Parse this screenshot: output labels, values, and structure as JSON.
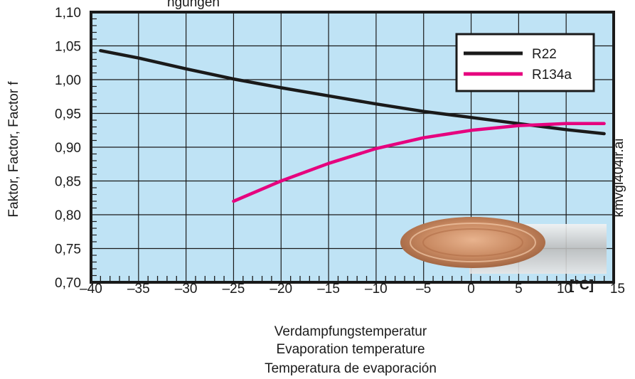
{
  "chart_data": {
    "type": "line",
    "top_caption": "ngungen",
    "ylabel": "Faktor, Factor, Factor f",
    "xlabel_lines": [
      "Verdampfungstemperatur",
      "Evaporation temperature",
      "Temperatura de evaporación"
    ],
    "x_unit": "[°C]",
    "side_label": "kmvgl404ir.ai",
    "xlim": [
      -40,
      15
    ],
    "ylim": [
      0.7,
      1.1
    ],
    "x_ticks": [
      -40,
      -35,
      -30,
      -25,
      -20,
      -15,
      -10,
      -5,
      0,
      5,
      10,
      15
    ],
    "x_tick_labels": [
      "–40",
      "–35",
      "–30",
      "–25",
      "–20",
      "–15",
      "–10",
      "–5",
      "0",
      "5",
      "10",
      "15"
    ],
    "y_ticks": [
      0.7,
      0.75,
      0.8,
      0.85,
      0.9,
      0.95,
      1.0,
      1.05,
      1.1
    ],
    "y_tick_labels": [
      "0,70",
      "0,75",
      "0,80",
      "0,85",
      "0,90",
      "0,95",
      "1,00",
      "1,05",
      "1,10"
    ],
    "grid": true,
    "legend_position": "top-right",
    "background_color": "#bfe3f5",
    "series": [
      {
        "name": "R22",
        "color": "#1a1a1a",
        "x": [
          -39,
          -35,
          -30,
          -25,
          -20,
          -15,
          -10,
          -5,
          0,
          5,
          10,
          14
        ],
        "y": [
          1.043,
          1.032,
          1.016,
          1.001,
          0.988,
          0.976,
          0.964,
          0.953,
          0.944,
          0.935,
          0.926,
          0.92
        ]
      },
      {
        "name": "R134a",
        "color": "#e6007e",
        "x": [
          -25,
          -20,
          -15,
          -10,
          -5,
          0,
          5,
          10,
          14
        ],
        "y": [
          0.82,
          0.85,
          0.876,
          0.898,
          0.914,
          0.925,
          0.932,
          0.935,
          0.935
        ]
      }
    ]
  }
}
